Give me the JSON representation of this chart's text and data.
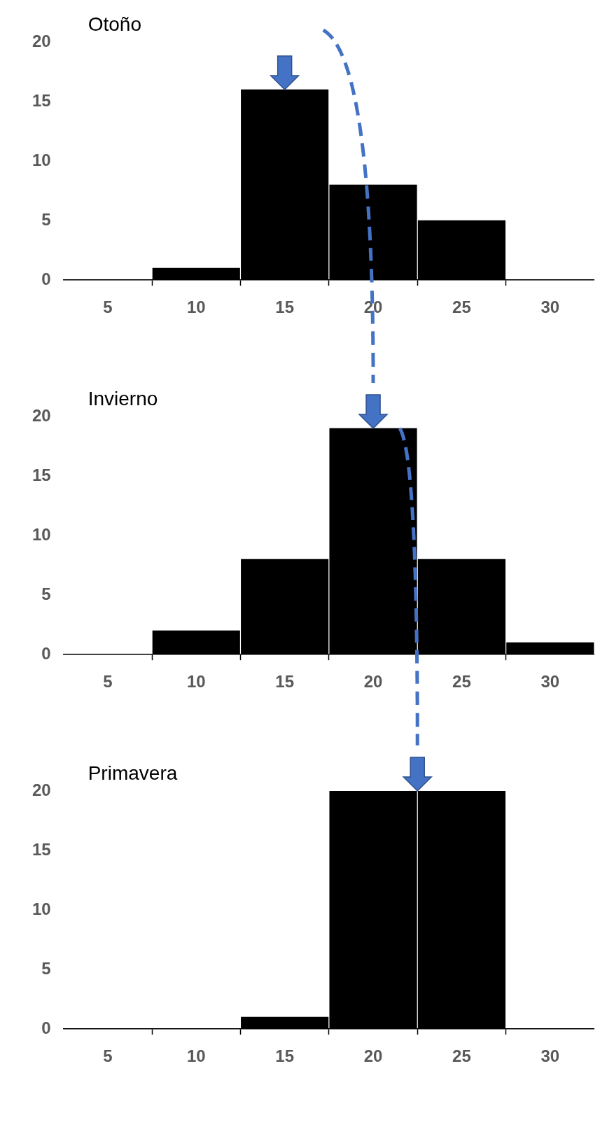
{
  "chart_data": [
    {
      "type": "histogram",
      "title": "Otoño",
      "bins": [
        2.5,
        7.5,
        12.5,
        17.5,
        22.5,
        27.5,
        32.5
      ],
      "values": [
        0,
        1,
        16,
        8,
        5,
        0
      ],
      "color": "#000000",
      "xlim": [
        2.5,
        32.5
      ],
      "ylim": [
        0,
        20
      ],
      "xticks": [
        5,
        {
          "value": 7.5,
          "label": null
        },
        10,
        {
          "value": 12.5,
          "label": null
        },
        15,
        {
          "value": 17.5,
          "label": null
        },
        20,
        {
          "value": 22.5,
          "label": null
        },
        25,
        {
          "value": 27.5,
          "label": null
        },
        30
      ],
      "yticks": [
        0,
        5,
        10,
        15,
        20
      ],
      "grid": false
    },
    {
      "type": "histogram",
      "title": "Invierno",
      "bins": [
        2.5,
        7.5,
        12.5,
        17.5,
        22.5,
        27.5,
        32.5
      ],
      "values": [
        0,
        2,
        8,
        19,
        8,
        1
      ],
      "color": "#000000",
      "xlim": [
        2.5,
        32.5
      ],
      "ylim": [
        0,
        20
      ],
      "xticks": [
        5,
        {
          "value": 7.5,
          "label": null
        },
        10,
        {
          "value": 12.5,
          "label": null
        },
        15,
        {
          "value": 17.5,
          "label": null
        },
        20,
        {
          "value": 22.5,
          "label": null
        },
        25,
        {
          "value": 27.5,
          "label": null
        },
        30
      ],
      "yticks": [
        0,
        5,
        10,
        15,
        20
      ],
      "grid": false
    },
    {
      "type": "histogram",
      "title": "Primavera",
      "bins": [
        2.5,
        7.5,
        12.5,
        17.5,
        22.5,
        27.5,
        32.5
      ],
      "values": [
        0,
        0,
        1,
        20,
        20,
        0
      ],
      "color": "#000000",
      "xlim": [
        2.5,
        32.5
      ],
      "ylim": [
        0,
        20
      ],
      "xticks": [
        5,
        {
          "value": 7.5,
          "label": null
        },
        10,
        {
          "value": 12.5,
          "label": null
        },
        15,
        {
          "value": 17.5,
          "label": null
        },
        20,
        {
          "value": 22.5,
          "label": null
        },
        25,
        {
          "value": 27.5,
          "label": null
        },
        30
      ],
      "yticks": [
        0,
        5,
        10,
        15,
        20
      ],
      "grid": false
    }
  ]
}
